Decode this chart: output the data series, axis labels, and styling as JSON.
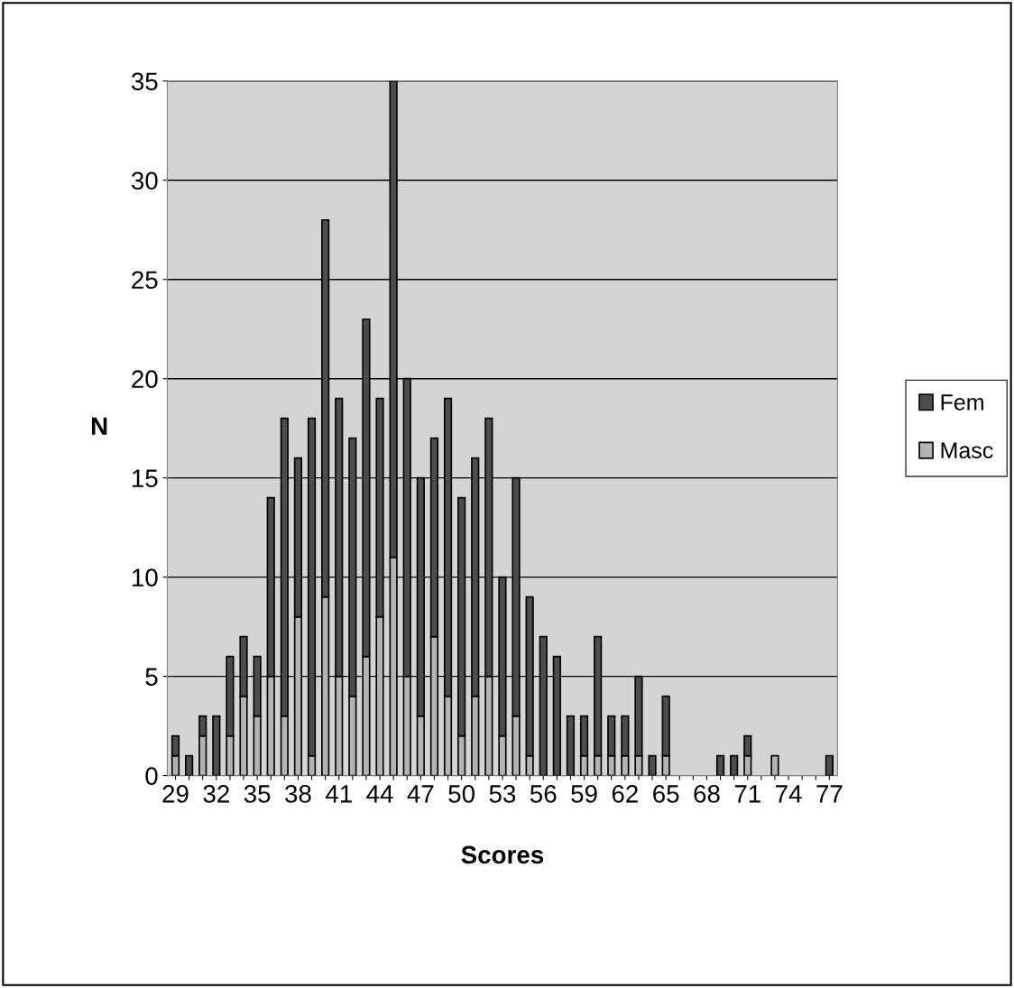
{
  "chart_data": {
    "type": "bar",
    "stacked": true,
    "xlabel": "Scores",
    "ylabel": "N",
    "categories": [
      "29",
      null,
      null,
      "32",
      null,
      null,
      "35",
      null,
      null,
      "38",
      null,
      null,
      "41",
      null,
      null,
      "44",
      null,
      null,
      "47",
      null,
      null,
      "50",
      null,
      null,
      "53",
      null,
      null,
      "56",
      null,
      null,
      "59",
      null,
      null,
      "62",
      null,
      null,
      "65",
      null,
      null,
      "68",
      null,
      null,
      "71",
      null,
      null,
      "74",
      null,
      null,
      "77"
    ],
    "series": [
      {
        "name": "Masc",
        "color": "#b3b3b3",
        "values": [
          1,
          0,
          2,
          0,
          2,
          4,
          3,
          5,
          3,
          8,
          1,
          9,
          5,
          4,
          6,
          8,
          11,
          5,
          3,
          7,
          4,
          2,
          4,
          5,
          2,
          3,
          1,
          0,
          0,
          0,
          1,
          1,
          1,
          1,
          1,
          0,
          1,
          0,
          0,
          0,
          0,
          0,
          1,
          0,
          1,
          0,
          0,
          0,
          0
        ]
      },
      {
        "name": "Fem",
        "color": "#4d4d4d",
        "values": [
          1,
          1,
          1,
          3,
          4,
          3,
          3,
          9,
          15,
          8,
          17,
          19,
          14,
          13,
          17,
          11,
          24,
          15,
          12,
          10,
          15,
          12,
          12,
          13,
          8,
          12,
          8,
          7,
          6,
          3,
          2,
          6,
          2,
          2,
          4,
          1,
          3,
          0,
          0,
          0,
          1,
          1,
          1,
          0,
          0,
          0,
          0,
          0,
          1
        ]
      }
    ],
    "ylim": [
      0,
      35
    ],
    "yticks": [
      0,
      5,
      10,
      15,
      20,
      25,
      30,
      35
    ],
    "grid": "y",
    "legend": "right"
  }
}
